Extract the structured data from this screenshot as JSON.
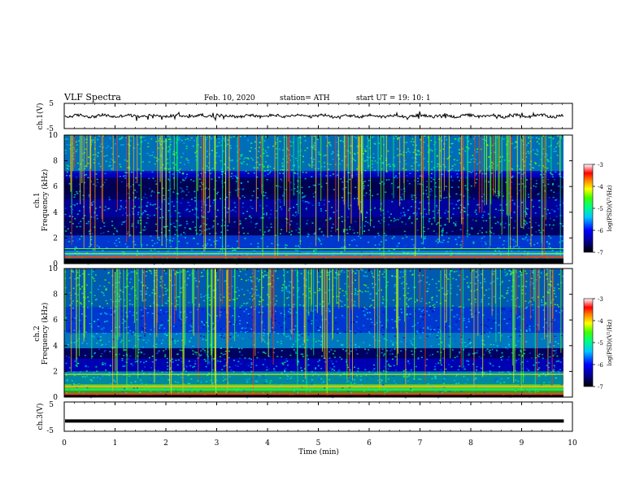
{
  "header": {
    "title": "VLF  Spectra",
    "date": "Feb. 10, 2020",
    "station": "station= ATH",
    "start": "start  UT  =    19: 10: 1"
  },
  "chart_data": [
    {
      "type": "line",
      "name": "ch1-waveform",
      "ylabel": "ch.1(V)",
      "ylim": [
        -5,
        5
      ],
      "yticks": [
        "5",
        "-5"
      ],
      "xlim": [
        0,
        10
      ],
      "baseline": 0,
      "data_extent_min": 9.83,
      "color": "#000000"
    },
    {
      "type": "heatmap",
      "name": "ch1-spectrogram",
      "ylabel": "ch.1 Frequency (kHz)",
      "ylim": [
        0,
        10
      ],
      "yticks": [
        "0",
        "2",
        "4",
        "6",
        "8",
        "10"
      ],
      "xlim": [
        0,
        10
      ],
      "data_extent_min": 9.83,
      "colorbar": {
        "label": "log(PSD)(V²/Hz)",
        "range": [
          -7,
          -3
        ],
        "ticks": [
          "-3",
          "-4",
          "-5",
          "-6",
          "-7"
        ]
      }
    },
    {
      "type": "heatmap",
      "name": "ch2-spectrogram",
      "ylabel": "ch.2 Frequency (kHz)",
      "ylim": [
        0,
        10
      ],
      "yticks": [
        "0",
        "2",
        "4",
        "6",
        "8",
        "10"
      ],
      "xlim": [
        0,
        10
      ],
      "data_extent_min": 9.83,
      "colorbar": {
        "label": "log(PSD)(V²/Hz)",
        "range": [
          -7,
          -3
        ],
        "ticks": [
          "-3",
          "-4",
          "-5",
          "-6",
          "-7"
        ]
      }
    },
    {
      "type": "line",
      "name": "ch3-waveform",
      "ylabel": "ch.3(V)",
      "ylim": [
        -5,
        5
      ],
      "yticks": [
        "5",
        "-5"
      ],
      "xlim": [
        0,
        10
      ],
      "baseline": -1.5,
      "data_extent_min": 9.83,
      "color": "#000000"
    }
  ],
  "x_axis": {
    "label": "Time  (min)",
    "range": [
      0,
      10
    ],
    "ticks": [
      "0",
      "1",
      "2",
      "3",
      "4",
      "5",
      "6",
      "7",
      "8",
      "9",
      "10"
    ]
  }
}
